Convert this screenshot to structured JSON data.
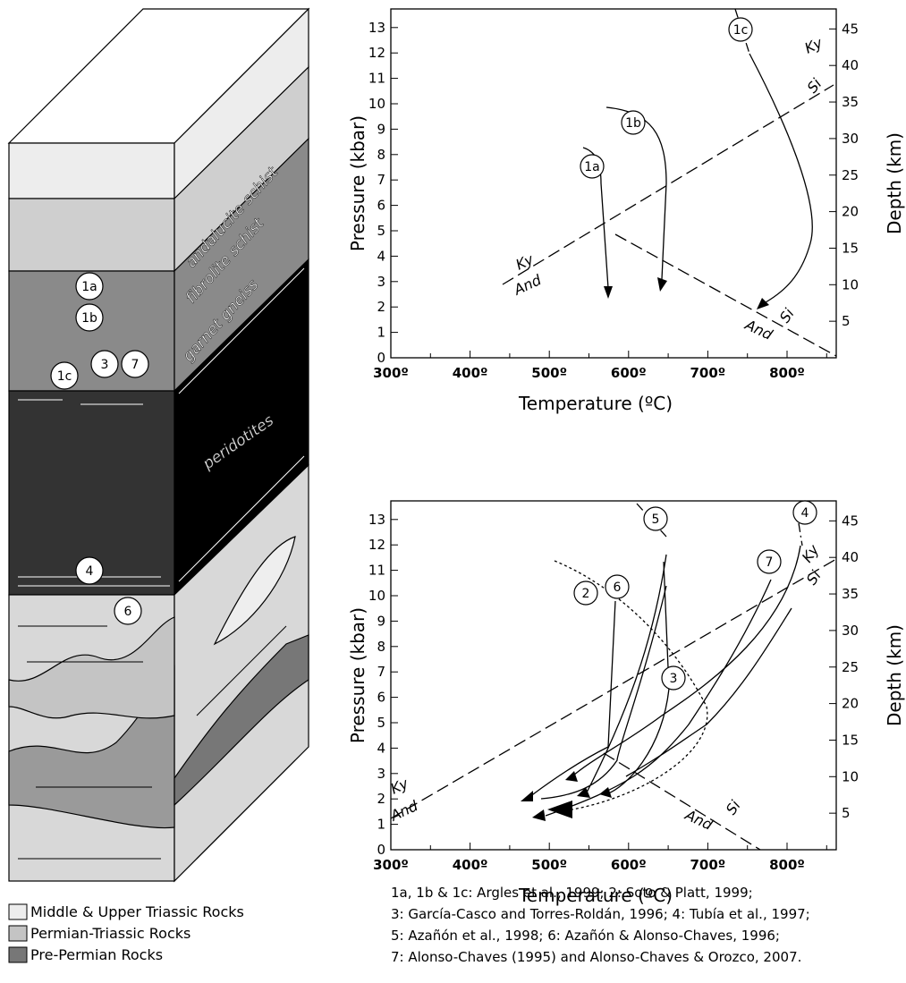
{
  "column": {
    "zones": [
      "andalucite schist",
      "fibrolite schist",
      "garnet gneiss",
      "peridotites"
    ],
    "sites": [
      "1a",
      "1b",
      "1c",
      "3",
      "7",
      "4",
      "6"
    ]
  },
  "legend": [
    "Middle & Upper Triassic Rocks",
    "Permian-Triassic Rocks",
    "Pre-Permian Rocks"
  ],
  "chart_top": {
    "x_label": "Temperature (ºC)",
    "y_label": "Pressure (kbar)",
    "y2_label": "Depth (km)",
    "xticks": [
      "300º",
      "400º",
      "500º",
      "600º",
      "700º",
      "800º"
    ],
    "yticks": [
      "0",
      "1",
      "2",
      "3",
      "4",
      "5",
      "6",
      "7",
      "8",
      "9",
      "10",
      "11",
      "12",
      "13"
    ],
    "y2ticks": [
      "5",
      "10",
      "15",
      "20",
      "25",
      "30",
      "35",
      "40",
      "45"
    ],
    "paths": [
      "1a",
      "1b",
      "1c"
    ],
    "reactions": [
      "Ky",
      "And",
      "Ky",
      "Si",
      "And",
      "Si"
    ]
  },
  "chart_bottom": {
    "x_label": "Temperature (ºC)",
    "y_label": "Pressure (kbar)",
    "y2_label": "Depth (km)",
    "xticks": [
      "300º",
      "400º",
      "500º",
      "600º",
      "700º",
      "800º"
    ],
    "yticks": [
      "0",
      "1",
      "2",
      "3",
      "4",
      "5",
      "6",
      "7",
      "8",
      "9",
      "10",
      "11",
      "12",
      "13"
    ],
    "y2ticks": [
      "5",
      "10",
      "15",
      "20",
      "25",
      "30",
      "35",
      "40",
      "45"
    ],
    "paths": [
      "2",
      "3",
      "4",
      "5",
      "6",
      "7"
    ],
    "reactions": [
      "Ky",
      "And",
      "Ky",
      "Si",
      "And",
      "Si"
    ]
  },
  "caption": [
    "1a, 1b & 1c: Argles et al., 1999; 2: Soto & Platt, 1999;",
    "3: García-Casco and Torres-Roldán, 1996; 4: Tubía et al., 1997;",
    "5: Azañón et al., 1998; 6: Azañón & Alonso-Chaves, 1996;",
    "7: Alonso-Chaves (1995) and Alonso-Chaves & Orozco, 2007."
  ]
}
